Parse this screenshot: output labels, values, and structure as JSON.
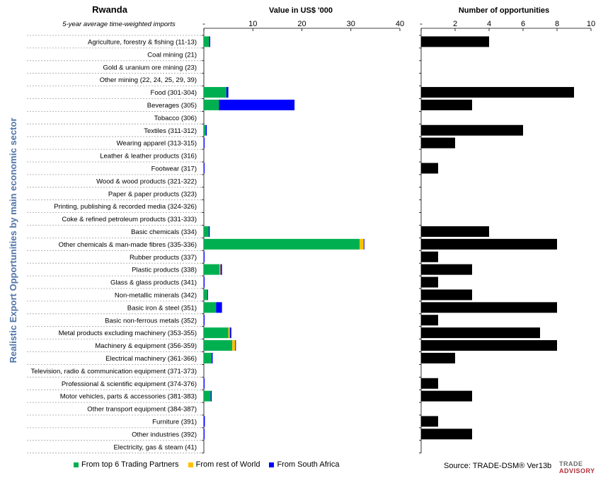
{
  "chart_data": [
    {
      "type": "bar",
      "stacked": true,
      "orientation": "horizontal",
      "title": "Value in US$ '000",
      "country": "Rwanda",
      "subtitle": "5-year average time-weighted imports",
      "ylabel": "Realistic Export Opportunities by main economic sector",
      "xlim": [
        0,
        40
      ],
      "ticks": [
        "-",
        "10",
        "20",
        "30",
        "40"
      ],
      "tick_values": [
        0,
        10,
        20,
        30,
        40
      ],
      "categories": [
        "Agriculture, forestry & fishing (11-13)",
        "Coal mining (21)",
        "Gold & uranium ore mining (23)",
        "Other mining (22, 24, 25, 29, 39)",
        "Food (301-304)",
        "Beverages (305)",
        "Tobacco (306)",
        "Textiles (311-312)",
        "Wearing apparel (313-315)",
        "Leather & leather products (316)",
        "Footwear (317)",
        "Wood & wood products (321-322)",
        "Paper & paper products (323)",
        "Printing, publishing & recorded media (324-326)",
        "Coke & refined petroleum products (331-333)",
        "Basic chemicals (334)",
        "Other chemicals & man-made fibres (335-336)",
        "Rubber products (337)",
        "Plastic products (338)",
        "Glass & glass products (341)",
        "Non-metallic minerals (342)",
        "Basic iron & steel (351)",
        "Basic non-ferrous metals (352)",
        "Metal products excluding machinery (353-355)",
        "Machinery & equipment (356-359)",
        "Electrical machinery (361-366)",
        "Television, radio & communication equipment (371-373)",
        "Professional & scientific equipment (374-376)",
        "Motor vehicles, parts & accessories (381-383)",
        "Other transport equipment (384-387)",
        "Furniture (391)",
        "Other industries (392)",
        "Electricity, gas & steam (41)"
      ],
      "series": [
        {
          "name": "From top 6 Trading Partners",
          "color": "#00b050",
          "values": [
            1.1,
            0,
            0,
            0,
            4.6,
            3.1,
            0,
            0.4,
            0,
            0,
            0,
            0,
            0,
            0,
            0,
            1.0,
            31.8,
            0,
            3.2,
            0,
            0.7,
            2.5,
            0,
            5.0,
            5.8,
            1.6,
            0,
            0,
            1.4,
            0,
            0,
            0,
            0
          ]
        },
        {
          "name": "From rest of World",
          "color": "#ffc000",
          "values": [
            0,
            0,
            0,
            0,
            0,
            0,
            0,
            0,
            0,
            0,
            0,
            0,
            0,
            0,
            0,
            0,
            0.8,
            0,
            0.2,
            0,
            0,
            0,
            0,
            0.3,
            0.6,
            0,
            0,
            0,
            0,
            0,
            0,
            0,
            0
          ]
        },
        {
          "name": "From South Africa",
          "color": "#0000ff",
          "values": [
            0.2,
            0,
            0,
            0,
            0.4,
            15.4,
            0,
            0.2,
            0.1,
            0,
            0.1,
            0,
            0,
            0,
            0,
            0.2,
            0.1,
            0.1,
            0.3,
            0.1,
            0.1,
            1.2,
            0.1,
            0.3,
            0.1,
            0.2,
            0,
            0.1,
            0.2,
            0,
            0.2,
            0.1,
            0
          ]
        }
      ]
    },
    {
      "type": "bar",
      "orientation": "horizontal",
      "title": "Number of opportunities",
      "xlim": [
        0,
        10
      ],
      "ticks": [
        "-",
        "2",
        "4",
        "6",
        "8",
        "10"
      ],
      "tick_values": [
        0,
        2,
        4,
        6,
        8,
        10
      ],
      "color": "#000000",
      "values": [
        4,
        0,
        0,
        0,
        9,
        3,
        0,
        6,
        2,
        0,
        1,
        0,
        0,
        0,
        0,
        4,
        8,
        1,
        3,
        1,
        3,
        8,
        1,
        7,
        8,
        2,
        0,
        1,
        3,
        0,
        1,
        3,
        0
      ]
    }
  ],
  "footer": {
    "source": "Source: TRADE-DSM®  Ver13b",
    "logo_line1": "TRADE",
    "logo_line2": "ADVISORY"
  }
}
